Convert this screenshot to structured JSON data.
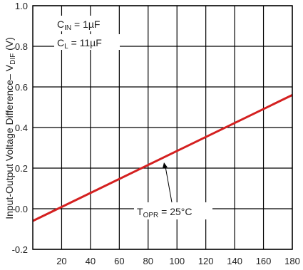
{
  "chart_data": {
    "type": "line",
    "title": "",
    "xlabel": "",
    "ylabel": {
      "main": "Input-Output Voltage Difference– V",
      "sub": "DIF",
      "unit": " (V)"
    },
    "xlim": [
      0,
      180
    ],
    "ylim": [
      -0.2,
      1.0
    ],
    "x_ticks": [
      "20",
      "40",
      "60",
      "80",
      "100",
      "120",
      "140",
      "160",
      "180"
    ],
    "y_ticks": [
      "-0.2",
      "0.0",
      "0.2",
      "0.4",
      "0.6",
      "0.8",
      "1.0"
    ],
    "grid": true,
    "legend": "none",
    "series": [
      {
        "color": "#d42020",
        "x": [
          0,
          180
        ],
        "y": [
          -0.06,
          0.56
        ]
      }
    ],
    "annotations": {
      "cin": {
        "main": "C",
        "sub": "IN",
        "value": " = 1µF"
      },
      "cl": {
        "main": "C",
        "sub": "L",
        "value": " = 11µF"
      },
      "topr": {
        "main": "T",
        "sub": "OPR",
        "value": " = 25°C"
      }
    }
  }
}
